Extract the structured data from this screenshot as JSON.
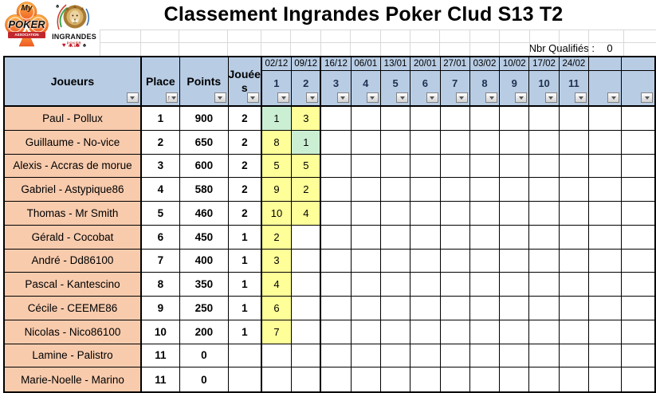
{
  "title": "Classement Ingrandes Poker Clud S13 T2",
  "qualifies": {
    "label": "Nbr Qualifiés :",
    "value": "0"
  },
  "logos": {
    "mypoker": {
      "top": "My",
      "main": "POKER",
      "banner": "ASSOCIATION"
    },
    "ingrandes": {
      "name": "INGRANDES",
      "subtitle": "POKER CLUB",
      "suits": [
        {
          "glyph": "♥",
          "color": "#C8102E"
        },
        {
          "glyph": "♦",
          "color": "#C8102E"
        },
        {
          "glyph": "♣",
          "color": "#C8102E"
        },
        {
          "glyph": "♠",
          "color": "#1a1a1a"
        }
      ]
    }
  },
  "table": {
    "headers": {
      "joueurs": "Joueurs",
      "place": "Place",
      "points": "Points",
      "jouees_line1": "Jouée",
      "jouees_line2": "s"
    },
    "game_columns": [
      {
        "date": "02/12",
        "num": "1"
      },
      {
        "date": "09/12",
        "num": "2"
      },
      {
        "date": "16/12",
        "num": "3"
      },
      {
        "date": "06/01",
        "num": "4"
      },
      {
        "date": "13/01",
        "num": "5"
      },
      {
        "date": "20/01",
        "num": "6"
      },
      {
        "date": "27/01",
        "num": "7"
      },
      {
        "date": "03/02",
        "num": "8"
      },
      {
        "date": "10/02",
        "num": "9"
      },
      {
        "date": "17/02",
        "num": "10"
      },
      {
        "date": "24/02",
        "num": "11"
      },
      {
        "date": "",
        "num": ""
      },
      {
        "date": "",
        "num": ""
      }
    ],
    "rows": [
      {
        "name": "Paul - Pollux",
        "place": "1",
        "points": "900",
        "jouees": "2",
        "games": [
          {
            "v": "1",
            "c": "g"
          },
          {
            "v": "3",
            "c": "y"
          }
        ]
      },
      {
        "name": "Guillaume - No-vice",
        "place": "2",
        "points": "650",
        "jouees": "2",
        "games": [
          {
            "v": "8",
            "c": "y"
          },
          {
            "v": "1",
            "c": "g"
          }
        ]
      },
      {
        "name": "Alexis - Accras de morue",
        "place": "3",
        "points": "600",
        "jouees": "2",
        "games": [
          {
            "v": "5",
            "c": "y"
          },
          {
            "v": "5",
            "c": "y"
          }
        ]
      },
      {
        "name": "Gabriel - Astypique86",
        "place": "4",
        "points": "580",
        "jouees": "2",
        "games": [
          {
            "v": "9",
            "c": "y"
          },
          {
            "v": "2",
            "c": "y"
          }
        ]
      },
      {
        "name": "Thomas - Mr Smith",
        "place": "5",
        "points": "460",
        "jouees": "2",
        "games": [
          {
            "v": "10",
            "c": "y"
          },
          {
            "v": "4",
            "c": "y"
          }
        ]
      },
      {
        "name": "Gérald - Cocobat",
        "place": "6",
        "points": "450",
        "jouees": "1",
        "games": [
          {
            "v": "2",
            "c": "y"
          }
        ]
      },
      {
        "name": "André - Dd86100",
        "place": "7",
        "points": "400",
        "jouees": "1",
        "games": [
          {
            "v": "3",
            "c": "y"
          }
        ]
      },
      {
        "name": "Pascal - Kantescino",
        "place": "8",
        "points": "350",
        "jouees": "1",
        "games": [
          {
            "v": "4",
            "c": "y"
          }
        ]
      },
      {
        "name": "Cécile - CEEME86",
        "place": "9",
        "points": "250",
        "jouees": "1",
        "games": [
          {
            "v": "6",
            "c": "y"
          }
        ]
      },
      {
        "name": "Nicolas - Nico86100",
        "place": "10",
        "points": "200",
        "jouees": "1",
        "games": [
          {
            "v": "7",
            "c": "y"
          }
        ]
      },
      {
        "name": "Lamine - Palistro",
        "place": "11",
        "points": "0",
        "jouees": "",
        "games": []
      },
      {
        "name": "Marie-Noelle - Marino",
        "place": "11",
        "points": "0",
        "jouees": "",
        "games": []
      }
    ]
  },
  "colors": {
    "header_bg": "#B8CCE4",
    "name_bg": "#F8CBAD",
    "win_green": "#CBEFD3",
    "played_yellow": "#FFFF99"
  }
}
